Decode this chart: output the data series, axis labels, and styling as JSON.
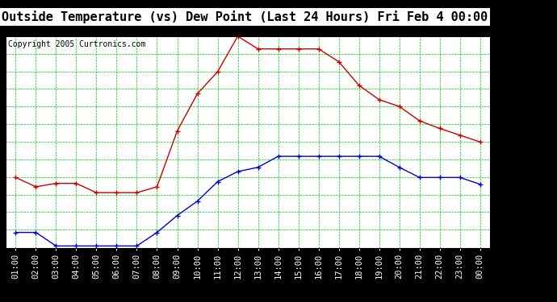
{
  "title": "Outside Temperature (vs) Dew Point (Last 24 Hours) Fri Feb 4 00:00",
  "copyright": "Copyright 2005 Curtronics.com",
  "x_labels": [
    "01:00",
    "02:00",
    "03:00",
    "04:00",
    "05:00",
    "06:00",
    "07:00",
    "08:00",
    "09:00",
    "10:00",
    "11:00",
    "12:00",
    "13:00",
    "14:00",
    "15:00",
    "16:00",
    "17:00",
    "18:00",
    "19:00",
    "20:00",
    "21:00",
    "22:00",
    "23:00",
    "00:00"
  ],
  "temp_values": [
    26.3,
    25.2,
    25.6,
    25.6,
    24.5,
    24.5,
    24.5,
    25.2,
    31.8,
    36.2,
    38.8,
    43.0,
    41.5,
    41.5,
    41.5,
    41.5,
    40.0,
    37.2,
    35.5,
    34.7,
    33.0,
    32.1,
    31.3,
    30.5
  ],
  "dew_values": [
    19.8,
    19.8,
    18.2,
    18.2,
    18.2,
    18.2,
    18.2,
    19.8,
    21.8,
    23.5,
    25.8,
    27.0,
    27.5,
    28.8,
    28.8,
    28.8,
    28.8,
    28.8,
    28.8,
    27.5,
    26.3,
    26.3,
    26.3,
    25.5
  ],
  "temp_color": "#cc0000",
  "dew_color": "#0000cc",
  "bg_color": "#000000",
  "plot_bg_color": "#ffffff",
  "grid_color": "#00cc00",
  "ylim_min": 18.0,
  "ylim_max": 43.0,
  "yticks": [
    18.0,
    20.1,
    22.2,
    24.2,
    26.3,
    28.4,
    30.5,
    32.6,
    34.7,
    36.8,
    38.8,
    40.9,
    43.0
  ],
  "title_fontsize": 11,
  "copyright_fontsize": 7,
  "tick_fontsize": 7.5
}
